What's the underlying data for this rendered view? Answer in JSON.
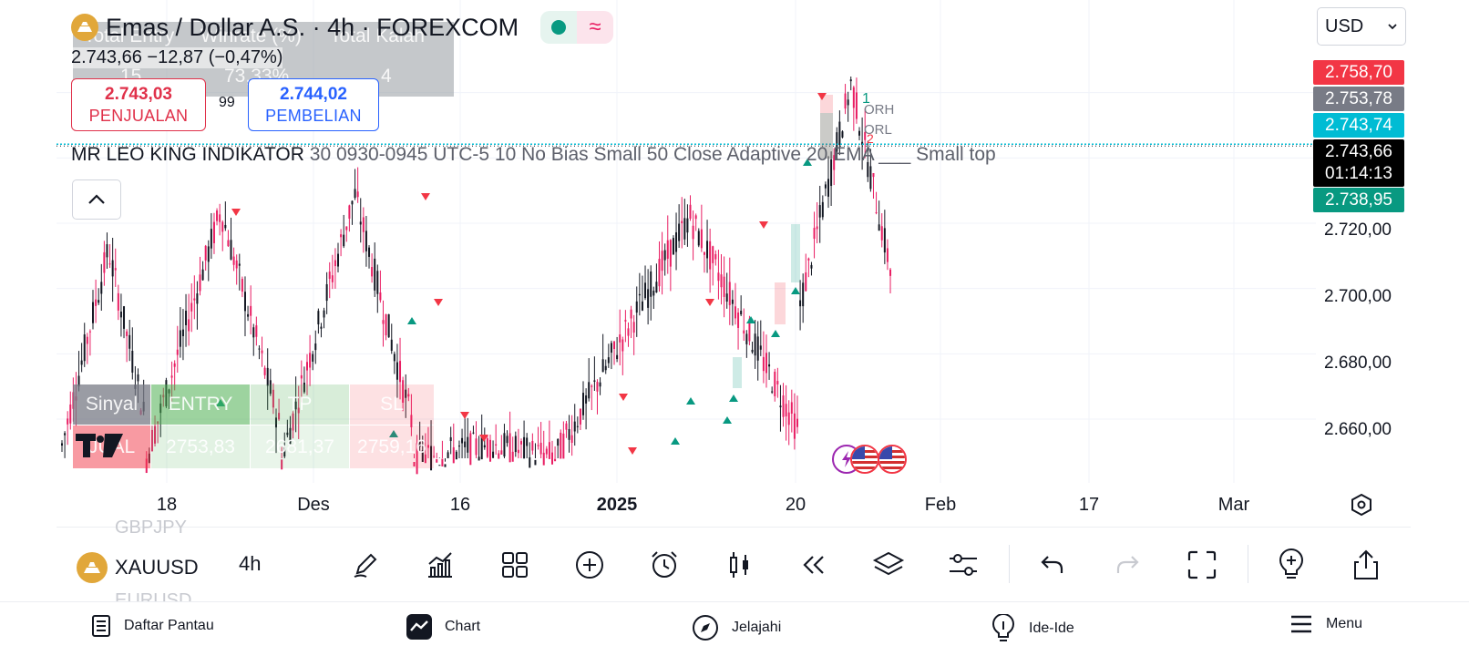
{
  "header": {
    "title": "Emas / Dollar A.S. · 4h · FOREXCOM",
    "price_line": "2.743,66  −12,87 (−0,47%)"
  },
  "stats_table": {
    "headers": [
      "Total Entry",
      "Winrate (%)",
      "Total Kalah"
    ],
    "values": [
      "15",
      "73,33%",
      "4"
    ]
  },
  "trade": {
    "sell_price": "2.743,03",
    "sell_label": "PENJUALAN",
    "spread": "99",
    "buy_price": "2.744,02",
    "buy_label": "PEMBELIAN"
  },
  "indicator": {
    "name": "MR LEO KING INDIKATOR",
    "params": "30 0930-0945 UTC-5 10 No Bias Small 50 Close Adaptive 20 EMA ___ Small top"
  },
  "orb_labels": {
    "top_num": "1",
    "orh": "ORH",
    "orl": "ORL",
    "bottom_num": "2"
  },
  "signal_table": {
    "headers": [
      "Sinyal",
      "ENTRY",
      "TP",
      "SL"
    ],
    "row": [
      "JUAL",
      "2753,83",
      "2681,37",
      "2759,16"
    ]
  },
  "currency": "USD",
  "y_axis": {
    "labels": [
      "2.720,00",
      "2.700,00",
      "2.680,00",
      "2.660,00"
    ],
    "tags": [
      {
        "value": "2.758,70",
        "color": "#f23645"
      },
      {
        "value": "2.753,78",
        "color": "#787b86"
      },
      {
        "value": "2.743,74",
        "color": "#00bcd4"
      },
      {
        "value": "2.738,95",
        "color": "#089981"
      }
    ],
    "current_price": "2.743,66",
    "countdown": "01:14:13"
  },
  "x_axis": {
    "labels": [
      "18",
      "Des",
      "16",
      "2025",
      "20",
      "Feb",
      "17",
      "Mar"
    ]
  },
  "toolbar": {
    "symbol_prev": "GBPJPY",
    "symbol": "XAUUSD",
    "symbol_next": "EURUSD",
    "interval": "4h"
  },
  "bottom_nav": {
    "watchlist": "Daftar Pantau",
    "chart": "Chart",
    "explore": "Jelajahi",
    "ideas": "Ide-Ide",
    "menu": "Menu"
  },
  "chart_data": {
    "type": "candlestick",
    "symbol": "XAUUSD",
    "ylim": [
      2648,
      2770
    ],
    "x_labels": [
      "18",
      "Des",
      "16",
      "2025",
      "20",
      "Feb",
      "17",
      "Mar"
    ],
    "ranges": [
      {
        "from": 0,
        "to": 30,
        "start": 2652,
        "peak": 2712
      },
      {
        "from": 30,
        "to": 78,
        "start": 2648,
        "peak": 2724
      },
      {
        "from": 78,
        "to": 125,
        "start": 2648,
        "peak": 2729
      },
      {
        "from": 125,
        "to": 175,
        "start": 2648,
        "peak": 2652
      },
      {
        "from": 175,
        "to": 262,
        "start": 2648,
        "peak": 2722
      },
      {
        "from": 262,
        "to": 295,
        "start": 2695,
        "peak": 2763
      }
    ],
    "series": [
      {
        "name": "close",
        "values": []
      }
    ],
    "last_price": 2743.66
  }
}
